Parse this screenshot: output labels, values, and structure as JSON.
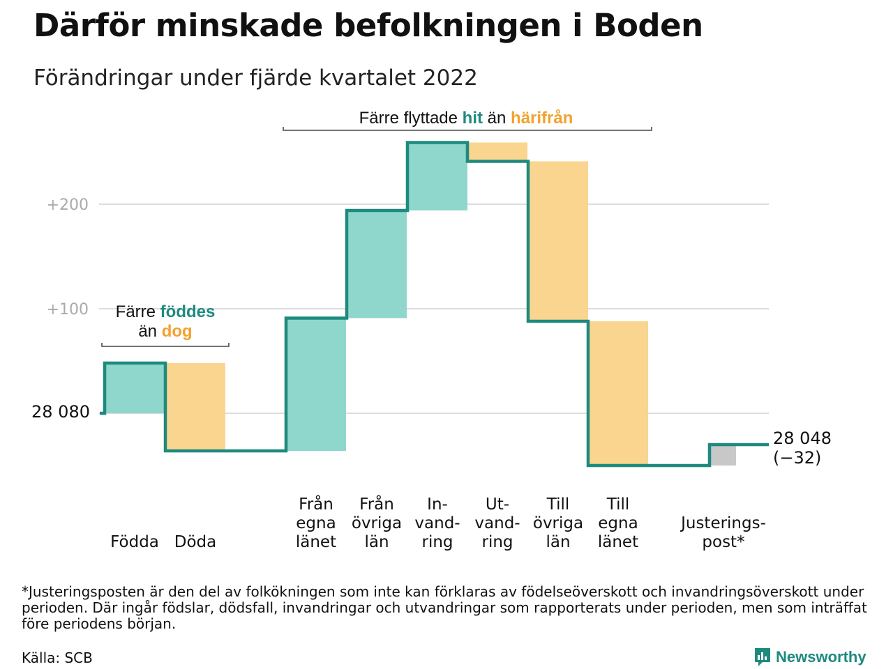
{
  "title": "Därför minskade befolkningen i Boden",
  "subtitle": "Förändringar under fjärde kvartalet 2022",
  "colors": {
    "increase": "#8fd6cc",
    "decrease": "#fad58f",
    "adjustment": "#c8c8c8",
    "line": "#1e8a7e",
    "teal_text": "#1e8a7e",
    "orange_text": "#f2a22e",
    "grid": "#dddddd",
    "tick_text": "#aaaaaa"
  },
  "annotations": {
    "migration": {
      "text1": "Färre flyttade ",
      "hl1": "hit",
      "text2": " än ",
      "hl2": "härifrån"
    },
    "natural": {
      "line1_text": "Färre ",
      "line1_hl": "föddes",
      "line2_text": "än ",
      "line2_hl": "dog"
    }
  },
  "chart_data": {
    "type": "waterfall",
    "title": "Därför minskade befolkningen i Boden",
    "subtitle": "Förändringar under fjärde kvartalet 2022",
    "start_value": 28080,
    "start_label": "28 080",
    "end_value": 28048,
    "end_label": "28 048",
    "end_change_label": "(−32)",
    "y_axis_ticks": [
      {
        "value": 100,
        "label": "+100"
      },
      {
        "value": 200,
        "label": "+200"
      }
    ],
    "grid": true,
    "steps": [
      {
        "label_lines": [
          "Födda"
        ],
        "change": 48,
        "kind": "increase"
      },
      {
        "label_lines": [
          "Döda"
        ],
        "change": -84,
        "kind": "decrease"
      },
      {
        "label_lines": [
          "Från",
          "egna",
          "länet"
        ],
        "change": 127,
        "kind": "increase"
      },
      {
        "label_lines": [
          "Från",
          "övriga",
          "län"
        ],
        "change": 103,
        "kind": "increase"
      },
      {
        "label_lines": [
          "In-",
          "vand-",
          "ring"
        ],
        "change": 65,
        "kind": "increase"
      },
      {
        "label_lines": [
          "Ut-",
          "vand-",
          "ring"
        ],
        "change": -18,
        "kind": "decrease"
      },
      {
        "label_lines": [
          "Till",
          "övriga",
          "län"
        ],
        "change": -153,
        "kind": "decrease"
      },
      {
        "label_lines": [
          "Till",
          "egna",
          "länet"
        ],
        "change": -138,
        "kind": "decrease"
      },
      {
        "label_lines": [
          "Justerings-",
          "post*"
        ],
        "change": 20,
        "kind": "adjustment"
      }
    ]
  },
  "footnote": "*Justeringsposten är den del av folkökningen som inte kan förklaras av födelseöverskott och invandringsöverskott under perioden. Där ingår födslar, dödsfall, invandringar och utvandringar som rapporterats under perioden, men som inträffat före periodens början.",
  "source": "Källa: SCB",
  "brand": {
    "name": "Newsworthy",
    "icon": "newsworthy-logo-icon"
  }
}
